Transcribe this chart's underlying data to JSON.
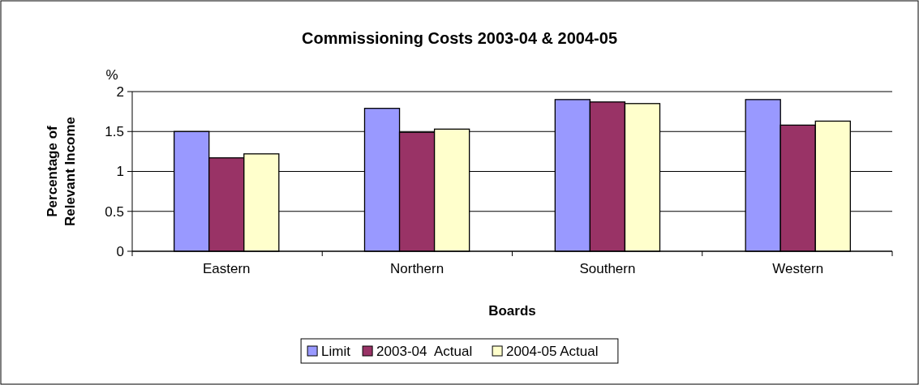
{
  "chart_data": {
    "type": "bar",
    "title": "Commissioning Costs 2003-04 & 2004-05",
    "xlabel": "Boards",
    "ylabel": "Percentage of Relevant Income",
    "annotations": [
      "%"
    ],
    "categories": [
      "Eastern",
      "Northern",
      "Southern",
      "Western"
    ],
    "series": [
      {
        "name": "Limit",
        "color": "#9999ff",
        "values": [
          1.5,
          1.79,
          1.9,
          1.9
        ]
      },
      {
        "name": "2003-04  Actual",
        "color": "#993366",
        "values": [
          1.17,
          1.49,
          1.87,
          1.58
        ]
      },
      {
        "name": "2004-05 Actual",
        "color": "#ffffcc",
        "values": [
          1.22,
          1.53,
          1.85,
          1.63
        ]
      }
    ],
    "ylim": [
      0,
      2
    ],
    "yticks": [
      0,
      0.5,
      1,
      1.5,
      2
    ],
    "grid": "y",
    "legend": "bottom"
  }
}
